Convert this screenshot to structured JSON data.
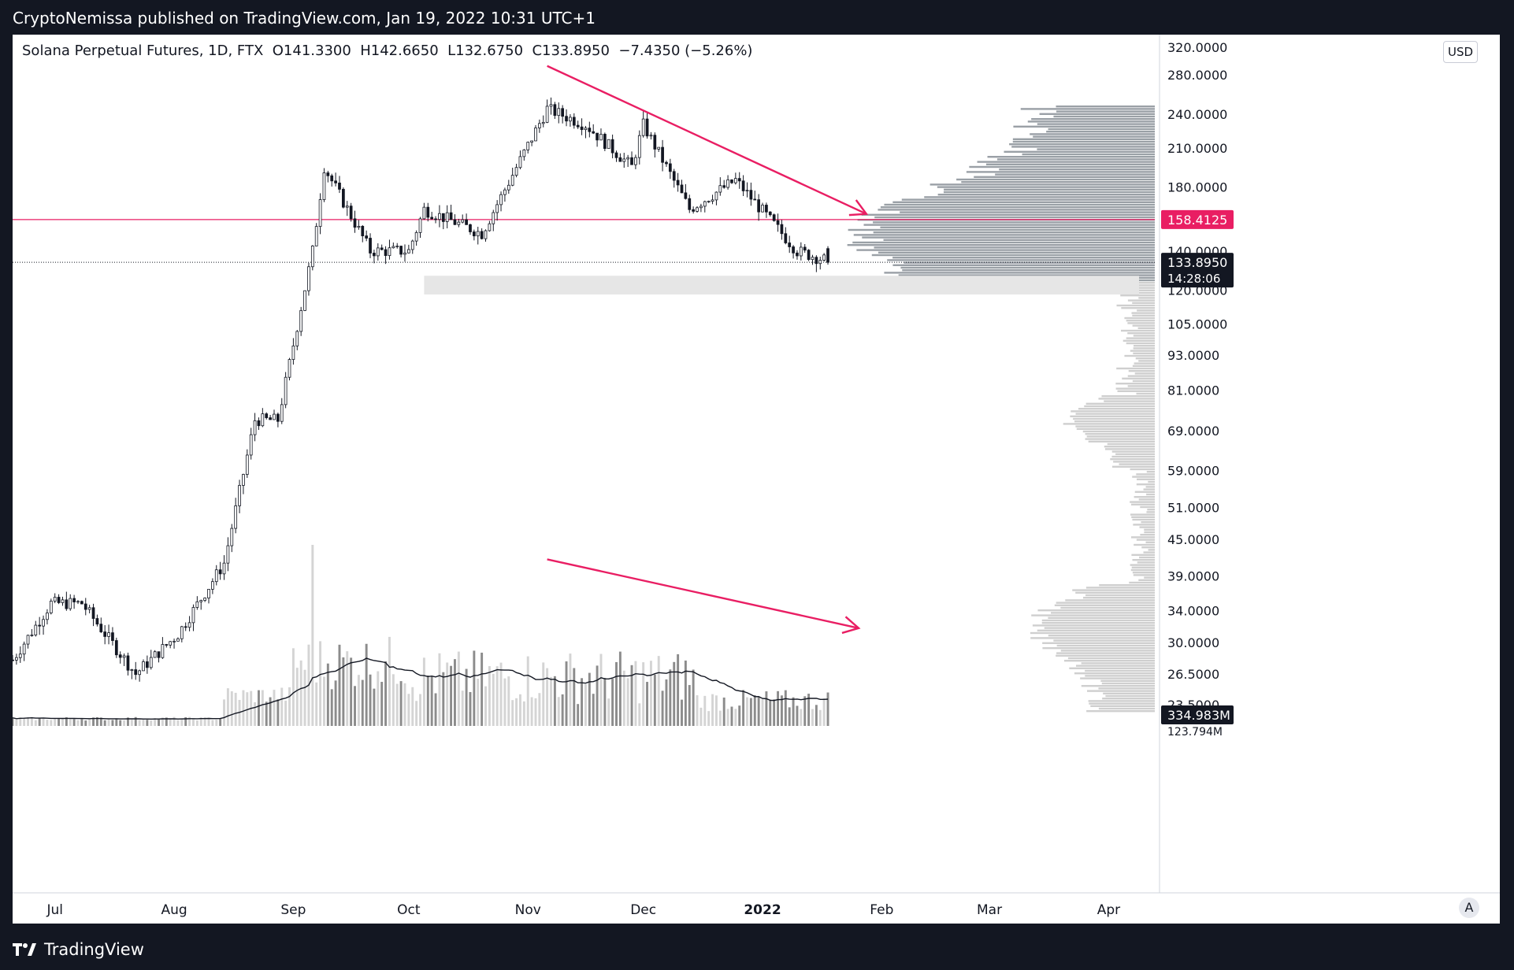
{
  "header": {
    "published_line": "CryptoNemissa published on TradingView.com, Jan 19, 2022 10:31 UTC+1"
  },
  "chart": {
    "symbol_line": "Solana Perpetual Futures, 1D, FTX  O141.3300  H142.6650  L132.6750  C133.8950  −7.4350 (−5.26%)",
    "currency_button": "USD",
    "auto_scale_button": "A"
  },
  "footer": {
    "brand": "TradingView"
  },
  "colors": {
    "background": "#131722",
    "chart_bg": "#ffffff",
    "candle": "#131722",
    "volume_up": "#d4d4d4",
    "volume_down": "#8c8c8c",
    "annotation": "#e91e63",
    "volume_profile": "#b5b5b5",
    "zone": "#e6e6e6"
  },
  "chart_data": {
    "type": "candlestick",
    "y_scale": "log",
    "ylim": [
      21.6,
      328
    ],
    "x_range": [
      "2021-06-20",
      "2022-04-13"
    ],
    "price_ticks": [
      "280.0000",
      "240.0000",
      "210.0000",
      "180.0000",
      "140.0000",
      "120.0000",
      "105.0000",
      "93.0000",
      "81.0000",
      "69.0000",
      "59.0000",
      "51.0000",
      "45.0000",
      "39.0000",
      "34.0000",
      "30.0000",
      "26.5000",
      "23.5000"
    ],
    "partial_top_tick": "320.0000",
    "x_tick_labels": [
      {
        "label": "Jul",
        "date": "2021-07-01"
      },
      {
        "label": "Aug",
        "date": "2021-08-01"
      },
      {
        "label": "Sep",
        "date": "2021-09-01"
      },
      {
        "label": "Oct",
        "date": "2021-10-01"
      },
      {
        "label": "Nov",
        "date": "2021-11-01"
      },
      {
        "label": "Dec",
        "date": "2021-12-01"
      },
      {
        "label": "2022",
        "date": "2022-01-01"
      },
      {
        "label": "Feb",
        "date": "2022-02-01"
      },
      {
        "label": "Mar",
        "date": "2022-03-01"
      },
      {
        "label": "Apr",
        "date": "2022-04-01"
      }
    ],
    "series": [
      {
        "start": "2021-06-20",
        "end": "2021-06-30",
        "from": 28,
        "to": 35
      },
      {
        "start": "2021-06-30",
        "end": "2021-07-08",
        "from": 35,
        "to": 35
      },
      {
        "start": "2021-07-08",
        "end": "2021-07-22",
        "from": 35,
        "to": 26.5
      },
      {
        "start": "2021-07-22",
        "end": "2021-08-02",
        "from": 26.5,
        "to": 31
      },
      {
        "start": "2021-08-02",
        "end": "2021-08-14",
        "from": 31,
        "to": 41
      },
      {
        "start": "2021-08-14",
        "end": "2021-08-22",
        "from": 41,
        "to": 72
      },
      {
        "start": "2021-08-22",
        "end": "2021-08-28",
        "from": 72,
        "to": 72
      },
      {
        "start": "2021-08-28",
        "end": "2021-09-06",
        "from": 72,
        "to": 140
      },
      {
        "start": "2021-09-06",
        "end": "2021-09-09",
        "from": 140,
        "to": 195
      },
      {
        "start": "2021-09-09",
        "end": "2021-09-21",
        "from": 195,
        "to": 140
      },
      {
        "start": "2021-09-21",
        "end": "2021-10-01",
        "from": 140,
        "to": 140
      },
      {
        "start": "2021-10-01",
        "end": "2021-10-05",
        "from": 140,
        "to": 165
      },
      {
        "start": "2021-10-05",
        "end": "2021-10-20",
        "from": 165,
        "to": 150
      },
      {
        "start": "2021-10-20",
        "end": "2021-11-06",
        "from": 150,
        "to": 245
      },
      {
        "start": "2021-11-06",
        "end": "2021-11-16",
        "from": 245,
        "to": 230
      },
      {
        "start": "2021-11-16",
        "end": "2021-11-28",
        "from": 230,
        "to": 195
      },
      {
        "start": "2021-11-28",
        "end": "2021-12-01",
        "from": 195,
        "to": 230
      },
      {
        "start": "2021-12-01",
        "end": "2021-12-13",
        "from": 230,
        "to": 165
      },
      {
        "start": "2021-12-13",
        "end": "2021-12-25",
        "from": 165,
        "to": 185
      },
      {
        "start": "2021-12-25",
        "end": "2022-01-10",
        "from": 185,
        "to": 140
      },
      {
        "start": "2022-01-10",
        "end": "2022-01-19",
        "from": 140,
        "to": 134
      }
    ],
    "last_candle": {
      "open": 141.33,
      "high": 142.665,
      "low": 132.675,
      "close": 133.895
    },
    "horizontal_line": {
      "price": 158.4125,
      "label": "158.4125",
      "color": "#e91e63"
    },
    "last_price": {
      "price": 133.895,
      "label": "133.8950",
      "countdown": "14:28:06"
    },
    "support_zone": {
      "price_low": 118,
      "price_high": 127,
      "start": "2021-10-05"
    },
    "trendline_price": {
      "start_date": "2021-11-06",
      "start_price": 290,
      "end_date": "2022-01-28",
      "end_price": 162
    },
    "trendline_volume": {
      "start_date": "2021-11-06",
      "end_date": "2022-01-26",
      "start_level": 0.92,
      "end_level": 0.54
    },
    "volume": {
      "last_label": "334.983M",
      "secondary_label": "123.794M",
      "peak_date": "2021-09-06"
    }
  }
}
